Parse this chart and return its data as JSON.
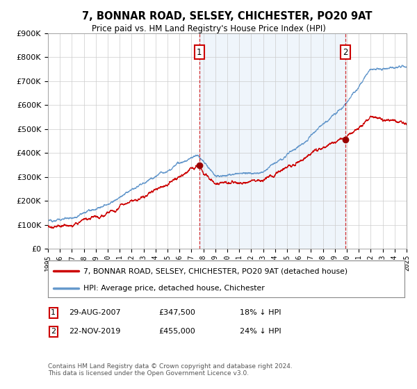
{
  "title": "7, BONNAR ROAD, SELSEY, CHICHESTER, PO20 9AT",
  "subtitle": "Price paid vs. HM Land Registry's House Price Index (HPI)",
  "legend_line1": "7, BONNAR ROAD, SELSEY, CHICHESTER, PO20 9AT (detached house)",
  "legend_line2": "HPI: Average price, detached house, Chichester",
  "annotation1_label": "1",
  "annotation1_date": "29-AUG-2007",
  "annotation1_price": "£347,500",
  "annotation1_hpi": "18% ↓ HPI",
  "annotation1_year": 2007.65,
  "annotation1_value": 347500,
  "annotation2_label": "2",
  "annotation2_date": "22-NOV-2019",
  "annotation2_price": "£455,000",
  "annotation2_hpi": "24% ↓ HPI",
  "annotation2_year": 2019.9,
  "annotation2_value": 455000,
  "footer": "Contains HM Land Registry data © Crown copyright and database right 2024.\nThis data is licensed under the Open Government Licence v3.0.",
  "price_line_color": "#cc0000",
  "hpi_line_color": "#6699cc",
  "shade_color": "#ddeeff",
  "background_color": "#ffffff",
  "ylim": [
    0,
    900000
  ],
  "yticks": [
    0,
    100000,
    200000,
    300000,
    400000,
    500000,
    600000,
    700000,
    800000,
    900000
  ],
  "xlim_start": 1995,
  "xlim_end": 2025
}
